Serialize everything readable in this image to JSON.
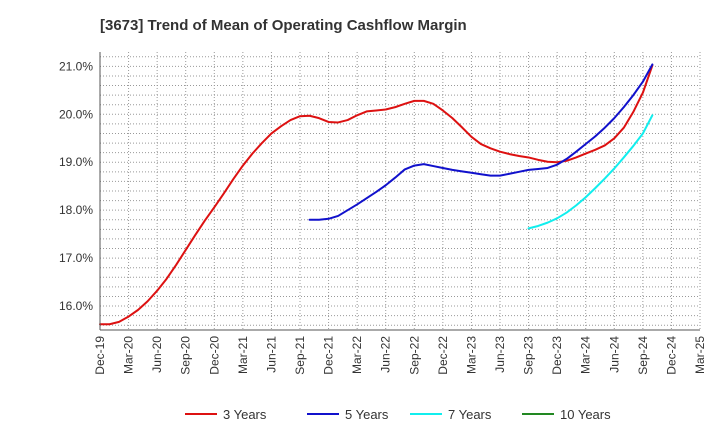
{
  "chart_data": {
    "type": "line",
    "title": "[3673]  Trend of Mean of Operating Cashflow Margin",
    "xlabel": "",
    "ylabel": "",
    "ylim": [
      15.5,
      21.3
    ],
    "y_ticks": [
      16.0,
      17.0,
      18.0,
      19.0,
      20.0,
      21.0
    ],
    "y_tick_labels": [
      "16.0%",
      "17.0%",
      "18.0%",
      "19.0%",
      "20.0%",
      "21.0%"
    ],
    "x_tick_labels": [
      "Dec-19",
      "Mar-20",
      "Jun-20",
      "Sep-20",
      "Dec-20",
      "Mar-21",
      "Jun-21",
      "Sep-21",
      "Dec-21",
      "Mar-22",
      "Jun-22",
      "Sep-22",
      "Dec-22",
      "Mar-23",
      "Jun-23",
      "Sep-23",
      "Dec-23",
      "Mar-24",
      "Jun-24",
      "Sep-24",
      "Dec-24",
      "Mar-25"
    ],
    "grid": true,
    "legend_position": "bottom",
    "series": [
      {
        "name": "3 Years",
        "color": "#dd1111",
        "points": [
          [
            0,
            15.62
          ],
          [
            1,
            15.62
          ],
          [
            2,
            15.67
          ],
          [
            3,
            15.78
          ],
          [
            4,
            15.92
          ],
          [
            5,
            16.1
          ],
          [
            6,
            16.32
          ],
          [
            7,
            16.57
          ],
          [
            8,
            16.86
          ],
          [
            9,
            17.17
          ],
          [
            10,
            17.48
          ],
          [
            11,
            17.78
          ],
          [
            12,
            18.06
          ],
          [
            13,
            18.35
          ],
          [
            14,
            18.65
          ],
          [
            15,
            18.93
          ],
          [
            16,
            19.18
          ],
          [
            17,
            19.4
          ],
          [
            18,
            19.6
          ],
          [
            19,
            19.75
          ],
          [
            20,
            19.88
          ],
          [
            21,
            19.96
          ],
          [
            22,
            19.97
          ],
          [
            23,
            19.92
          ],
          [
            24,
            19.84
          ],
          [
            25,
            19.83
          ],
          [
            26,
            19.88
          ],
          [
            27,
            19.98
          ],
          [
            28,
            20.06
          ],
          [
            29,
            20.08
          ],
          [
            30,
            20.1
          ],
          [
            31,
            20.15
          ],
          [
            32,
            20.22
          ],
          [
            33,
            20.28
          ],
          [
            34,
            20.28
          ],
          [
            35,
            20.22
          ],
          [
            36,
            20.08
          ],
          [
            37,
            19.92
          ],
          [
            38,
            19.73
          ],
          [
            39,
            19.53
          ],
          [
            40,
            19.38
          ],
          [
            41,
            19.29
          ],
          [
            42,
            19.22
          ],
          [
            43,
            19.17
          ],
          [
            44,
            19.13
          ],
          [
            45,
            19.1
          ],
          [
            46,
            19.05
          ],
          [
            47,
            19.01
          ],
          [
            48,
            19.0
          ],
          [
            49,
            19.03
          ],
          [
            50,
            19.1
          ],
          [
            51,
            19.18
          ],
          [
            52,
            19.26
          ],
          [
            53,
            19.35
          ],
          [
            54,
            19.5
          ],
          [
            55,
            19.72
          ],
          [
            56,
            20.05
          ],
          [
            57,
            20.45
          ],
          [
            58,
            21.02
          ]
        ]
      },
      {
        "name": "5 Years",
        "color": "#1111cc",
        "points": [
          [
            22,
            17.8
          ],
          [
            23,
            17.8
          ],
          [
            24,
            17.82
          ],
          [
            25,
            17.88
          ],
          [
            26,
            18.0
          ],
          [
            27,
            18.12
          ],
          [
            28,
            18.25
          ],
          [
            29,
            18.38
          ],
          [
            30,
            18.52
          ],
          [
            31,
            18.68
          ],
          [
            32,
            18.85
          ],
          [
            33,
            18.93
          ],
          [
            34,
            18.96
          ],
          [
            35,
            18.92
          ],
          [
            36,
            18.88
          ],
          [
            37,
            18.84
          ],
          [
            38,
            18.81
          ],
          [
            39,
            18.78
          ],
          [
            40,
            18.75
          ],
          [
            41,
            18.72
          ],
          [
            42,
            18.72
          ],
          [
            43,
            18.76
          ],
          [
            44,
            18.8
          ],
          [
            45,
            18.84
          ],
          [
            46,
            18.86
          ],
          [
            47,
            18.88
          ],
          [
            48,
            18.95
          ],
          [
            49,
            19.07
          ],
          [
            50,
            19.22
          ],
          [
            51,
            19.38
          ],
          [
            52,
            19.54
          ],
          [
            53,
            19.72
          ],
          [
            54,
            19.92
          ],
          [
            55,
            20.15
          ],
          [
            56,
            20.4
          ],
          [
            57,
            20.68
          ],
          [
            58,
            21.04
          ]
        ]
      },
      {
        "name": "7 Years",
        "color": "#11eeee",
        "points": [
          [
            45,
            17.62
          ],
          [
            46,
            17.67
          ],
          [
            47,
            17.74
          ],
          [
            48,
            17.83
          ],
          [
            49,
            17.95
          ],
          [
            50,
            18.1
          ],
          [
            51,
            18.27
          ],
          [
            52,
            18.46
          ],
          [
            53,
            18.66
          ],
          [
            54,
            18.87
          ],
          [
            55,
            19.1
          ],
          [
            56,
            19.34
          ],
          [
            57,
            19.6
          ],
          [
            58,
            19.98
          ]
        ]
      },
      {
        "name": "10 Years",
        "color": "#228822",
        "points": []
      }
    ]
  }
}
